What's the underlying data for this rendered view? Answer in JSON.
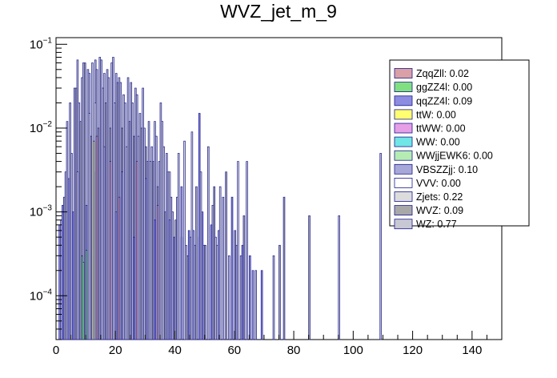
{
  "chart_data": {
    "type": "bar",
    "title": "WVZ_jet_m_9",
    "xlabel": "",
    "ylabel": "",
    "xlim": [
      0,
      150
    ],
    "ylim": [
      3e-05,
      0.12
    ],
    "y_scale": "log",
    "grid": false,
    "legend_position": "top-right",
    "x_ticks": [
      "0",
      "20",
      "40",
      "60",
      "80",
      "100",
      "120",
      "140"
    ],
    "y_ticks": [
      {
        "value": 0.0001,
        "label": "10",
        "exponent": "−4"
      },
      {
        "value": 0.001,
        "label": "10",
        "exponent": "−3"
      },
      {
        "value": 0.01,
        "label": "10",
        "exponent": "−2"
      },
      {
        "value": 0.1,
        "label": "10",
        "exponent": "−1"
      }
    ],
    "legend": [
      {
        "label": "ZqqZll: 0.02",
        "color": "#d9a0a6"
      },
      {
        "label": "ggZZ4l: 0.00",
        "color": "#80e080"
      },
      {
        "label": "qqZZ4l: 0.09",
        "color": "#8c8ce0"
      },
      {
        "label": "ttW: 0.00",
        "color": "#ffff70"
      },
      {
        "label": "ttWW: 0.00",
        "color": "#e69ee6"
      },
      {
        "label": "WW: 0.00",
        "color": "#70e6e6"
      },
      {
        "label": "WWjjEWK6: 0.00",
        "color": "#b4ecb4"
      },
      {
        "label": "VBSZZjj: 0.10",
        "color": "#a8a8d8"
      },
      {
        "label": "VVV: 0.00",
        "color": "#ffffff"
      },
      {
        "label": "Zjets: 0.22",
        "color": "#dcdcdc"
      },
      {
        "label": "WVZ: 0.09",
        "color": "#a8a8a8"
      },
      {
        "label": "WZ: 0.77",
        "color": "#c8c8d4"
      }
    ],
    "series": [
      {
        "name": "WZ: 0.77",
        "bins": [
          [
            1.5,
            0.0008
          ],
          [
            3,
            0.003
          ],
          [
            3.5,
            0.012
          ],
          [
            4.5,
            0.02
          ],
          [
            5,
            0.005
          ],
          [
            6,
            0.03
          ],
          [
            7,
            0.065
          ],
          [
            7.5,
            0.02
          ],
          [
            8.5,
            0.04
          ],
          [
            9,
            0.06
          ],
          [
            10.5,
            0.05
          ],
          [
            11,
            0.045
          ],
          [
            12,
            0.06
          ],
          [
            13,
            0.065
          ],
          [
            13.5,
            0.05
          ],
          [
            14.5,
            0.07
          ],
          [
            15,
            0.065
          ],
          [
            16,
            0.045
          ],
          [
            17,
            0.05
          ],
          [
            17.5,
            0.04
          ],
          [
            18.5,
            0.06
          ],
          [
            19,
            0.07
          ],
          [
            20,
            0.045
          ],
          [
            21,
            0.04
          ],
          [
            21.5,
            0.035
          ],
          [
            22.5,
            0.025
          ],
          [
            23,
            0.02
          ],
          [
            24,
            0.04
          ],
          [
            25,
            0.035
          ],
          [
            25.5,
            0.02
          ],
          [
            26.5,
            0.03
          ],
          [
            27,
            0.025
          ],
          [
            28,
            0.015
          ],
          [
            29,
            0.03
          ],
          [
            29.5,
            0.01
          ],
          [
            30.5,
            0.004
          ],
          [
            31,
            0.012
          ],
          [
            32,
            0.006
          ],
          [
            33,
            0.012
          ],
          [
            33.5,
            0.008
          ],
          [
            34.5,
            0.004
          ],
          [
            35,
            0.02
          ],
          [
            36,
            0.006
          ],
          [
            37,
            0.005
          ],
          [
            37.5,
            0.003
          ],
          [
            38.5,
            0.0015
          ],
          [
            39,
            0.001
          ],
          [
            40.5,
            0.0015
          ],
          [
            42,
            0.0005
          ],
          [
            43.5,
            0.0004
          ],
          [
            45,
            0.0005
          ],
          [
            46.5,
            0.0004
          ],
          [
            48,
            0.0005
          ],
          [
            49.5,
            0.0004
          ],
          [
            51,
            0.006
          ],
          [
            52.5,
            0.0012
          ],
          [
            54,
            0.0004
          ],
          [
            56,
            0.0015
          ],
          [
            58,
            0.0003
          ],
          [
            62,
            0.0003
          ],
          [
            64,
            0.004
          ],
          [
            67,
            0.0002
          ],
          [
            73,
            0.0003
          ],
          [
            95,
            0.0009
          ],
          [
            109,
            0.005
          ]
        ]
      },
      {
        "name": "WVZ: 0.09",
        "bins": [
          [
            2.5,
            0.0015
          ],
          [
            6.5,
            0.03
          ],
          [
            8,
            0.012
          ],
          [
            9.5,
            0.06
          ],
          [
            11.5,
            0.008
          ],
          [
            14,
            0.01
          ],
          [
            16.5,
            0.02
          ],
          [
            18,
            0.01
          ],
          [
            20.5,
            0.035
          ],
          [
            22,
            0.01
          ],
          [
            24.5,
            0.012
          ],
          [
            26,
            0.008
          ],
          [
            28.5,
            0.01
          ],
          [
            30,
            0.006
          ],
          [
            32.5,
            0.004
          ],
          [
            34,
            0.002
          ],
          [
            36.5,
            0.001
          ],
          [
            40,
            0.0008
          ],
          [
            44,
            0.0003
          ],
          [
            47,
            0.002
          ],
          [
            50,
            0.0004
          ],
          [
            53,
            0.002
          ],
          [
            57,
            0.003
          ],
          [
            60,
            0.0006
          ],
          [
            63,
            0.0009
          ],
          [
            75,
            0.0004
          ],
          [
            76.5,
            0.0015
          ],
          [
            85,
            0.0009
          ]
        ]
      },
      {
        "name": "Zjets: 0.22",
        "bins": [
          [
            7,
            0.003
          ],
          [
            11,
            0.015
          ],
          [
            13,
            0.02
          ],
          [
            15.5,
            0.03
          ],
          [
            19.5,
            0.02
          ],
          [
            23.5,
            0.006
          ],
          [
            27.5,
            0.008
          ],
          [
            31.5,
            0.004
          ],
          [
            35.5,
            0.012
          ],
          [
            38,
            0.003
          ],
          [
            41,
            0.005
          ],
          [
            43,
            0.007
          ],
          [
            45.5,
            0.009
          ],
          [
            48.5,
            0.003
          ],
          [
            53.5,
            0.0005
          ],
          [
            55,
            0.002
          ],
          [
            61,
            0.004
          ]
        ]
      },
      {
        "name": "qqZZ4l: 0.09",
        "bins": [
          [
            1,
            0.0007
          ],
          [
            2,
            0.0012
          ],
          [
            4,
            0.0025
          ],
          [
            5.5,
            0.001
          ],
          [
            12.5,
            0.003
          ],
          [
            20,
            0.001
          ],
          [
            26,
            0.0005
          ],
          [
            33,
            0.0008
          ],
          [
            39.5,
            0.0005
          ],
          [
            44.5,
            0.0006
          ],
          [
            48,
            0.015
          ],
          [
            49,
            0.001
          ],
          [
            52,
            0.0007
          ],
          [
            59,
            0.0015
          ],
          [
            62.5,
            0.0004
          ],
          [
            65,
            0.0003
          ],
          [
            69,
            0.0002
          ]
        ]
      },
      {
        "name": "VBSZZjj: 0.10",
        "bins": [
          [
            10,
            0.0012
          ],
          [
            16,
            0.006
          ],
          [
            22,
            0.003
          ],
          [
            30,
            0.0025
          ],
          [
            38,
            0.0008
          ],
          [
            42,
            0.002
          ],
          [
            46,
            0.0006
          ],
          [
            54.5,
            0.0006
          ],
          [
            60.5,
            0.0004
          ],
          [
            66,
            0.0002
          ]
        ]
      },
      {
        "name": "ZqqZll: 0.02",
        "bins": [
          [
            13.5,
            0.008
          ],
          [
            18,
            0.004
          ],
          [
            21,
            0.0015
          ],
          [
            27,
            0.004
          ],
          [
            34,
            0.0012
          ]
        ]
      },
      {
        "name": "ggZZ4l: 0.00",
        "bins": [
          [
            8.5,
            0.0003
          ],
          [
            9,
            0.00025
          ],
          [
            10,
            0.00035
          ]
        ]
      },
      {
        "name": "ttW: 0.00",
        "bins": [
          [
            12.5,
            0.007
          ]
        ]
      }
    ]
  }
}
